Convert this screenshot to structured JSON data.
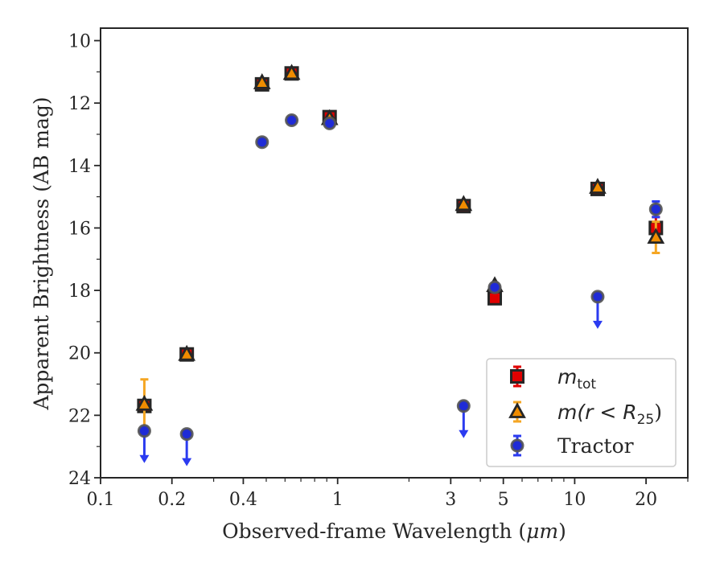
{
  "chart_data": {
    "type": "scatter",
    "xlabel_prefix": "Observed-frame Wavelength (",
    "xlabel_unit": "μm",
    "xlabel_suffix": ")",
    "ylabel": "Apparent Brightness (AB mag)",
    "x_scale": "log",
    "xlim": [
      0.1,
      30
    ],
    "ylim": [
      24,
      9.6
    ],
    "y_inverted": true,
    "x_ticks": [
      {
        "value": 0.1,
        "label": "0.1"
      },
      {
        "value": 0.2,
        "label": "0.2"
      },
      {
        "value": 0.4,
        "label": "0.4"
      },
      {
        "value": 1,
        "label": "1"
      },
      {
        "value": 3,
        "label": "3"
      },
      {
        "value": 5,
        "label": "5"
      },
      {
        "value": 10,
        "label": "10"
      },
      {
        "value": 20,
        "label": "20"
      }
    ],
    "x_minor_ticks": [
      0.3,
      0.5,
      0.6,
      0.7,
      0.8,
      0.9,
      2,
      4,
      6,
      7,
      8,
      9,
      30
    ],
    "y_ticks": [
      10,
      12,
      14,
      16,
      18,
      20,
      22,
      24
    ],
    "grid": false,
    "legend_position": "lower-right",
    "series": [
      {
        "id": "tractor",
        "legend_text": "Tractor",
        "marker": "circle",
        "fill": "#1f2bd6",
        "edge": "#555555",
        "errcolor": "#2b3bf0",
        "points": [
          {
            "x": 0.153,
            "y": 22.5,
            "upper_limit": true
          },
          {
            "x": 0.231,
            "y": 22.6,
            "upper_limit": true
          },
          {
            "x": 0.48,
            "y": 13.25
          },
          {
            "x": 0.64,
            "y": 12.55
          },
          {
            "x": 0.925,
            "y": 12.65
          },
          {
            "x": 3.4,
            "y": 21.7,
            "upper_limit": true
          },
          {
            "x": 4.6,
            "y": 17.9
          },
          {
            "x": 12.5,
            "y": 18.2,
            "upper_limit": true
          },
          {
            "x": 22.0,
            "y": 15.4,
            "err": 0.25
          }
        ]
      },
      {
        "id": "m_tot",
        "legend_main": "m",
        "legend_sub": "tot",
        "marker": "square",
        "fill": "#e00000",
        "edge": "#262626",
        "errcolor": "#e00000",
        "points": [
          {
            "x": 0.153,
            "y": 21.7
          },
          {
            "x": 0.231,
            "y": 20.05
          },
          {
            "x": 0.48,
            "y": 11.4
          },
          {
            "x": 0.64,
            "y": 11.05
          },
          {
            "x": 0.925,
            "y": 12.45
          },
          {
            "x": 3.4,
            "y": 15.3
          },
          {
            "x": 4.6,
            "y": 18.25
          },
          {
            "x": 12.5,
            "y": 14.75
          },
          {
            "x": 22.0,
            "y": 16.0,
            "err": 0.35
          }
        ]
      },
      {
        "id": "m_r25",
        "legend_main": "m(r < R",
        "legend_sub": "25",
        "legend_close": ")",
        "marker": "triangle",
        "fill": "#f08c00",
        "edge": "#262626",
        "errcolor": "#f5a623",
        "points": [
          {
            "x": 0.153,
            "y": 21.65,
            "err": 0.8
          },
          {
            "x": 0.231,
            "y": 20.05
          },
          {
            "x": 0.48,
            "y": 11.35
          },
          {
            "x": 0.64,
            "y": 11.05
          },
          {
            "x": 0.925,
            "y": 12.5
          },
          {
            "x": 3.4,
            "y": 15.25
          },
          {
            "x": 4.6,
            "y": 17.85
          },
          {
            "x": 12.5,
            "y": 14.7
          },
          {
            "x": 22.0,
            "y": 16.3,
            "err": 0.5
          }
        ]
      }
    ]
  }
}
